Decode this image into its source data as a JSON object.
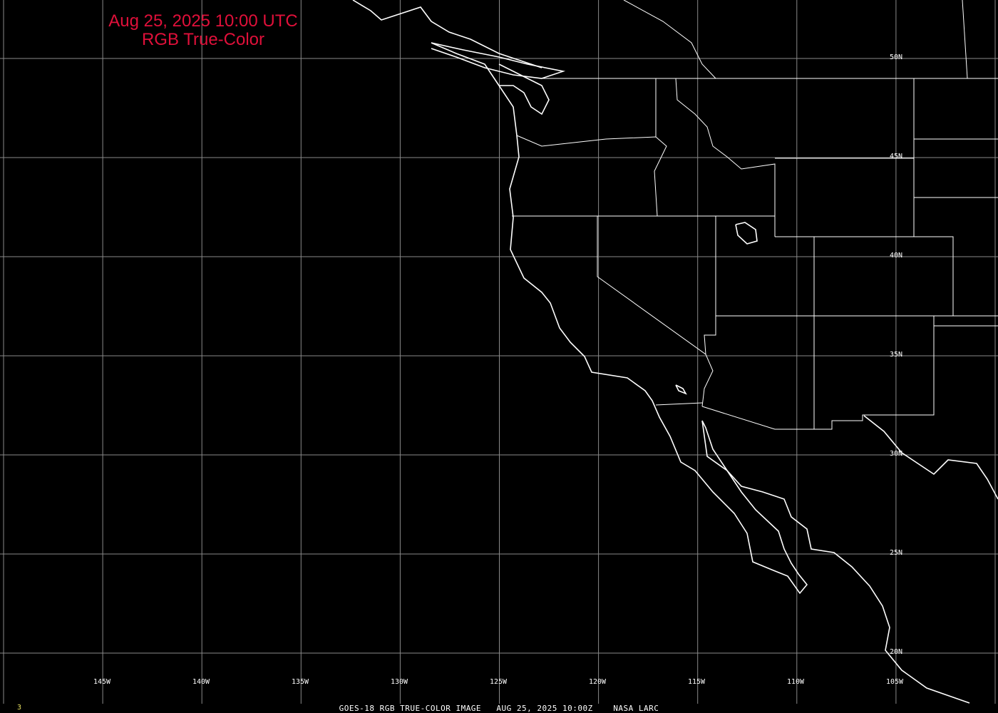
{
  "title": {
    "line1": "Aug 25, 2025 10:00 UTC",
    "line2": "RGB True-Color",
    "color": "#e0103a"
  },
  "latitude_labels": [
    "50N",
    "45N",
    "40N",
    "35N",
    "30N",
    "25N",
    "20N"
  ],
  "longitude_labels": [
    "145W",
    "140W",
    "135W",
    "130W",
    "125W",
    "120W",
    "115W",
    "110W",
    "105W"
  ],
  "footer": "GOES-18 RGB TRUE-COLOR IMAGE   AUG 25, 2025 10:00Z    NASA LARC",
  "frame_number": "3",
  "colors": {
    "background": "#000000",
    "grid": "#8a8a8a",
    "coastline": "#ffffff"
  }
}
